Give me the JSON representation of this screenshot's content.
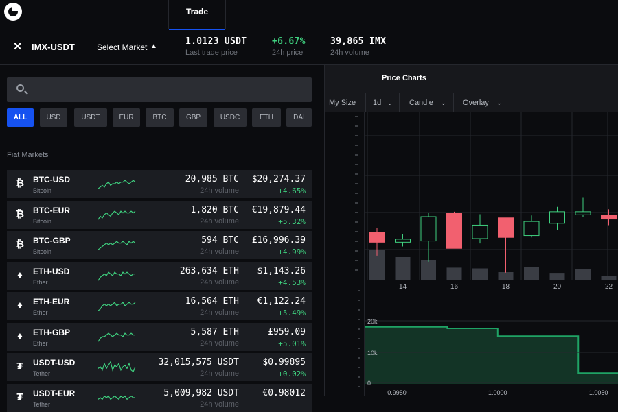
{
  "header": {
    "active_tab": "Trade"
  },
  "market": {
    "pair": "IMX-USDT",
    "select_label": "Select Market",
    "stats": [
      {
        "value": "1.0123 USDT",
        "label": "Last trade price",
        "positive": false
      },
      {
        "value": "+6.67%",
        "label": "24h price",
        "positive": true
      },
      {
        "value": "39,865 IMX",
        "label": "24h volume",
        "positive": false
      }
    ]
  },
  "search": {
    "placeholder": "",
    "value": ""
  },
  "filters": [
    "ALL",
    "USD",
    "USDT",
    "EUR",
    "BTC",
    "GBP",
    "USDC",
    "ETH",
    "DAI"
  ],
  "active_filter": "ALL",
  "section_title": "Fiat Markets",
  "rows": [
    {
      "pair": "BTC-USD",
      "coin": "Bitcoin",
      "icon": "bitcoin-icon",
      "glyph": "₿",
      "volume": "20,985 BTC",
      "volume_label": "24h volume",
      "price": "$20,274.37",
      "change": "+4.65%",
      "spark": [
        8,
        7,
        6,
        7,
        5,
        4,
        6,
        5,
        5,
        4,
        5,
        4,
        4,
        3,
        4,
        5,
        4,
        3,
        4
      ]
    },
    {
      "pair": "BTC-EUR",
      "coin": "Bitcoin",
      "icon": "bitcoin-icon",
      "glyph": "₿",
      "volume": "1,820 BTC",
      "volume_label": "24h volume",
      "price": "€19,879.44",
      "change": "+5.32%",
      "spark": [
        8,
        6,
        7,
        5,
        4,
        5,
        6,
        4,
        3,
        4,
        5,
        3,
        4,
        3,
        4,
        4,
        3,
        4,
        3
      ]
    },
    {
      "pair": "BTC-GBP",
      "coin": "Bitcoin",
      "icon": "bitcoin-icon",
      "glyph": "₿",
      "volume": "594 BTC",
      "volume_label": "24h volume",
      "price": "£16,996.39",
      "change": "+4.99%",
      "spark": [
        8,
        7,
        6,
        5,
        4,
        5,
        4,
        5,
        4,
        3,
        4,
        4,
        3,
        4,
        5,
        3,
        4,
        3,
        4
      ]
    },
    {
      "pair": "ETH-USD",
      "coin": "Ether",
      "icon": "ethereum-icon",
      "glyph": "♦",
      "volume": "263,634 ETH",
      "volume_label": "24h volume",
      "price": "$1,143.26",
      "change": "+4.53%",
      "spark": [
        8,
        6,
        5,
        4,
        5,
        3,
        4,
        5,
        3,
        4,
        4,
        5,
        3,
        4,
        3,
        4,
        5,
        4,
        4
      ]
    },
    {
      "pair": "ETH-EUR",
      "coin": "Ether",
      "icon": "ethereum-icon",
      "glyph": "♦",
      "volume": "16,564 ETH",
      "volume_label": "24h volume",
      "price": "€1,122.24",
      "change": "+5.49%",
      "spark": [
        8,
        7,
        5,
        4,
        5,
        4,
        5,
        4,
        3,
        5,
        4,
        4,
        3,
        5,
        4,
        3,
        4,
        4,
        3
      ]
    },
    {
      "pair": "ETH-GBP",
      "coin": "Ether",
      "icon": "ethereum-icon",
      "glyph": "♦",
      "volume": "5,587 ETH",
      "volume_label": "24h volume",
      "price": "£959.09",
      "change": "+5.01%",
      "spark": [
        8,
        6,
        5,
        5,
        4,
        3,
        4,
        5,
        4,
        3,
        4,
        4,
        5,
        3,
        4,
        4,
        3,
        4,
        4
      ]
    },
    {
      "pair": "USDT-USD",
      "coin": "Tether",
      "icon": "tether-icon",
      "glyph": "₮",
      "volume": "32,015,575 USDT",
      "volume_label": "24h volume",
      "price": "$0.99895",
      "change": "+0.02%",
      "spark": [
        6,
        5,
        7,
        3,
        6,
        4,
        2,
        7,
        4,
        5,
        3,
        7,
        5,
        4,
        6,
        3,
        7,
        8,
        5
      ]
    },
    {
      "pair": "USDT-EUR",
      "coin": "Tether",
      "icon": "tether-icon",
      "glyph": "₮",
      "volume": "5,009,982 USDT",
      "volume_label": "24h volume",
      "price": "€0.98012",
      "change": "",
      "spark": [
        6,
        5,
        6,
        4,
        5,
        4,
        6,
        5,
        4,
        5,
        6,
        4,
        5,
        4,
        6,
        5,
        4,
        5,
        5
      ]
    }
  ],
  "chart": {
    "title": "Price Charts",
    "toolbar": {
      "size": "My Size",
      "interval": "1d",
      "type": "Candle",
      "overlay": "Overlay"
    },
    "x_ticks": [
      "14",
      "16",
      "18",
      "20",
      "22"
    ],
    "depth_y_ticks": [
      "20k",
      "10k",
      "0"
    ],
    "depth_x_ticks": [
      "0.9950",
      "1.0000",
      "1.0050"
    ],
    "colors": {
      "up": "#3fd07f",
      "down": "#f2606f",
      "depth_fill": "#133426",
      "depth_line": "#1fa365"
    }
  },
  "chart_data": [
    {
      "type": "candlestick",
      "x": [
        "13",
        "14",
        "15",
        "16",
        "17",
        "18",
        "19",
        "20",
        "21",
        "22"
      ],
      "series": [
        {
          "open": 0.978,
          "close": 0.962,
          "high": 0.986,
          "low": 0.94
        },
        {
          "open": 0.962,
          "close": 0.967,
          "high": 0.975,
          "low": 0.955
        },
        {
          "open": 0.964,
          "close": 1.004,
          "high": 1.01,
          "low": 0.93
        },
        {
          "open": 1.01,
          "close": 0.952,
          "high": 1.012,
          "low": 0.952
        },
        {
          "open": 0.968,
          "close": 0.99,
          "high": 1.008,
          "low": 0.96
        },
        {
          "open": 1.002,
          "close": 0.97,
          "high": 1.002,
          "low": 0.912
        },
        {
          "open": 0.973,
          "close": 0.996,
          "high": 1.006,
          "low": 0.97
        },
        {
          "open": 0.993,
          "close": 1.012,
          "high": 1.02,
          "low": 0.982
        },
        {
          "open": 1.007,
          "close": 1.012,
          "high": 1.035,
          "low": 1.004
        },
        {
          "open": 1.006,
          "close": 1.0,
          "high": 1.016,
          "low": 0.99
        }
      ],
      "volume": [
        40,
        30,
        26,
        16,
        15,
        10,
        17,
        9,
        14,
        5
      ]
    },
    {
      "type": "area",
      "x": [
        0.9934,
        0.995,
        0.9975,
        1.0,
        1.0025,
        1.004,
        1.006
      ],
      "values": [
        18500,
        18500,
        18000,
        15500,
        15500,
        3500,
        3500
      ],
      "xlabel": "",
      "ylabel": "",
      "ylim": [
        0,
        20000
      ]
    }
  ]
}
